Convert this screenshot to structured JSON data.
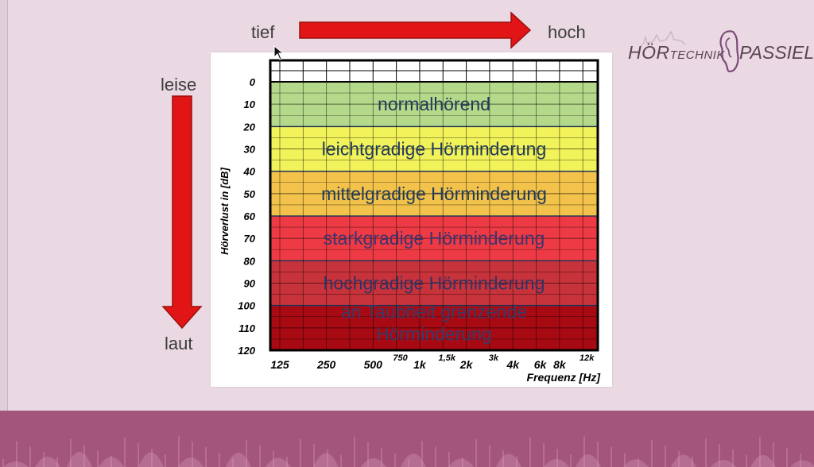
{
  "labels": {
    "tief": "tief",
    "hoch": "hoch",
    "leise": "leise",
    "laut": "laut"
  },
  "logo": {
    "part1": "HÖR",
    "part2": "TECHNIK",
    "part3": "PASSIEL",
    "icon": "ear-icon"
  },
  "colors": {
    "background": "#ead9e3",
    "arrow": "#e11515",
    "band_bottom": "#a4557c"
  },
  "chart_data": {
    "type": "heatmap",
    "ylabel": "Hörverlust in [dB]",
    "xlabel": "Frequenz [Hz]",
    "ylim": [
      0,
      120
    ],
    "y_ticks": [
      "0",
      "10",
      "20",
      "30",
      "40",
      "50",
      "60",
      "70",
      "80",
      "90",
      "100",
      "110",
      "120"
    ],
    "x_ticks": [
      {
        "label": "125",
        "pos": 0
      },
      {
        "label": "250",
        "pos": 1
      },
      {
        "label": "500",
        "pos": 2
      },
      {
        "label": "750",
        "pos": 2.585,
        "small": true
      },
      {
        "label": "1k",
        "pos": 3
      },
      {
        "label": "1,5k",
        "pos": 3.585,
        "small": true
      },
      {
        "label": "2k",
        "pos": 4
      },
      {
        "label": "3k",
        "pos": 4.585,
        "small": true
      },
      {
        "label": "4k",
        "pos": 5
      },
      {
        "label": "6k",
        "pos": 5.585
      },
      {
        "label": "8k",
        "pos": 6
      },
      {
        "label": "12k",
        "pos": 6.585,
        "small": true
      }
    ],
    "bands": [
      {
        "label": "normalhörend",
        "from": 0,
        "to": 20,
        "color": "#b5d98a",
        "text_color": "#1f3a5a"
      },
      {
        "label": "leichtgradige Hörminderung",
        "from": 20,
        "to": 40,
        "color": "#f2f25a",
        "text_color": "#1f3a5a"
      },
      {
        "label": "mittelgradige Hörminderung",
        "from": 40,
        "to": 60,
        "color": "#f2c24a",
        "text_color": "#1f3a5a"
      },
      {
        "label": "starkgradige Hörminderung",
        "from": 60,
        "to": 80,
        "color": "#ee3a44",
        "text_color": "#3c3470"
      },
      {
        "label": "hochgradige Hörminderung",
        "from": 80,
        "to": 100,
        "color": "#c8323a",
        "text_color": "#2f3366"
      },
      {
        "label": "an Taubheit grenzende Hörminderung",
        "from": 100,
        "to": 120,
        "color": "#a80a14",
        "text_color": "#3a3a66"
      }
    ]
  }
}
